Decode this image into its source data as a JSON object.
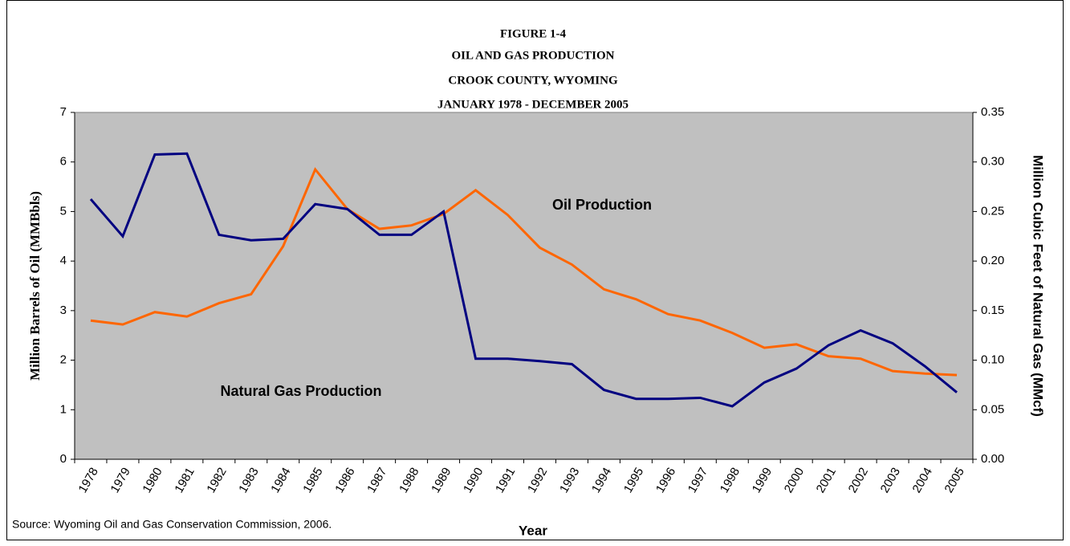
{
  "chart_data": {
    "type": "line",
    "title": [
      "FIGURE 1-4",
      "OIL AND GAS PRODUCTION",
      "CROOK COUNTY, WYOMING",
      "JANUARY 1978 - DECEMBER 2005"
    ],
    "x_label": "Year",
    "y_label": "Million Barrels of Oil (MMBbls)",
    "y2_label": "Million Cubic Feet of Natural Gas (MMcf)",
    "annotations": [
      "Oil Production",
      "Natural Gas Production"
    ],
    "source": "Source: Wyoming Oil and Gas Conservation Commission, 2006.",
    "categories": [
      "1978",
      "1979",
      "1980",
      "1981",
      "1982",
      "1983",
      "1984",
      "1985",
      "1986",
      "1987",
      "1988",
      "1989",
      "1990",
      "1991",
      "1992",
      "1993",
      "1994",
      "1995",
      "1996",
      "1997",
      "1998",
      "1999",
      "2000",
      "2001",
      "2002",
      "2003",
      "2004",
      "2005"
    ],
    "series": [
      {
        "color": "#ff6600",
        "axis": "y",
        "values": [
          2.8,
          2.72,
          2.97,
          2.88,
          3.15,
          3.33,
          4.3,
          5.85,
          5.05,
          4.65,
          4.72,
          4.95,
          5.43,
          4.93,
          4.27,
          3.93,
          3.43,
          3.23,
          2.93,
          2.8,
          2.55,
          2.25,
          2.32,
          2.08,
          2.03,
          1.78,
          1.73,
          1.7
        ]
      },
      {
        "color": "#000080",
        "axis": "y2",
        "values": [
          0.2625,
          0.225,
          0.3075,
          0.3085,
          0.2265,
          0.221,
          0.2225,
          0.2575,
          0.2525,
          0.2265,
          0.2265,
          0.25,
          0.1015,
          0.1015,
          0.099,
          0.096,
          0.07,
          0.061,
          0.061,
          0.062,
          0.0535,
          0.0775,
          0.0915,
          0.115,
          0.13,
          0.117,
          0.094,
          0.0675
        ]
      }
    ],
    "ylim": [
      0,
      7
    ],
    "yticks": [
      0,
      1,
      2,
      3,
      4,
      5,
      6,
      7
    ],
    "y2lim": [
      0,
      0.35
    ],
    "y2ticks": [
      {
        "value": 0,
        "label": "0.00"
      },
      0.05,
      {
        "value": 0.1,
        "label": "0.10"
      },
      0.15,
      {
        "value": 0.2,
        "label": "0.20"
      },
      0.25,
      {
        "value": 0.3,
        "label": "0.30"
      },
      0.35
    ],
    "plot_color": "#c0c0c0"
  }
}
